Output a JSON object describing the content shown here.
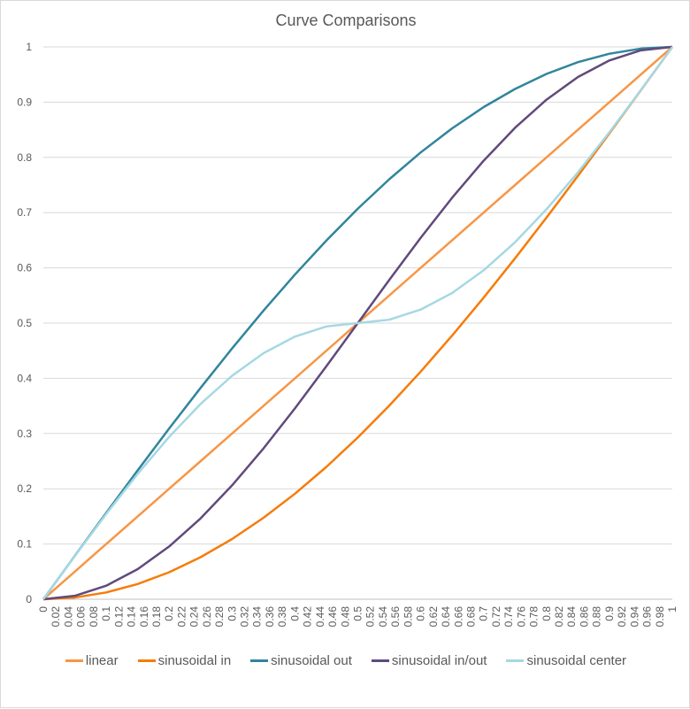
{
  "chart_data": {
    "type": "line",
    "title": "Curve Comparisons",
    "xlabel": "",
    "ylabel": "",
    "xlim": [
      0,
      1
    ],
    "ylim": [
      0,
      1
    ],
    "x_tick_step": 0.02,
    "y_tick_step": 0.1,
    "grid": "horizontal",
    "legend_position": "bottom",
    "x": [
      0,
      0.05,
      0.1,
      0.15,
      0.2,
      0.25,
      0.3,
      0.35,
      0.4,
      0.45,
      0.5,
      0.55,
      0.6,
      0.65,
      0.7,
      0.75,
      0.8,
      0.85,
      0.9,
      0.95,
      1
    ],
    "series": [
      {
        "name": "linear",
        "color": "#F79646",
        "values": [
          0,
          0.05,
          0.1,
          0.15,
          0.2,
          0.25,
          0.3,
          0.35,
          0.4,
          0.45,
          0.5,
          0.55,
          0.6,
          0.65,
          0.7,
          0.75,
          0.8,
          0.85,
          0.9,
          0.95,
          1
        ]
      },
      {
        "name": "sinusoidal in",
        "color": "#F57C0A",
        "values": [
          0,
          0.0031,
          0.0123,
          0.0276,
          0.0489,
          0.0761,
          0.109,
          0.1474,
          0.191,
          0.2396,
          0.2929,
          0.3506,
          0.4122,
          0.4775,
          0.546,
          0.6173,
          0.691,
          0.7666,
          0.8436,
          0.9215,
          1
        ]
      },
      {
        "name": "sinusoidal out",
        "color": "#31859C",
        "values": [
          0,
          0.0785,
          0.1564,
          0.2334,
          0.309,
          0.3827,
          0.454,
          0.5225,
          0.5878,
          0.6494,
          0.7071,
          0.7604,
          0.809,
          0.8526,
          0.891,
          0.9239,
          0.9511,
          0.9724,
          0.9877,
          0.9969,
          1
        ]
      },
      {
        "name": "sinusoidal in/out",
        "color": "#604A7B",
        "values": [
          0,
          0.0062,
          0.0245,
          0.0545,
          0.0955,
          0.1464,
          0.2061,
          0.273,
          0.3455,
          0.4218,
          0.5,
          0.5782,
          0.6545,
          0.727,
          0.7939,
          0.8536,
          0.9045,
          0.9455,
          0.9755,
          0.9938,
          1
        ]
      },
      {
        "name": "sinusoidal center",
        "color": "#A5D8E3",
        "values": [
          0,
          0.0782,
          0.1545,
          0.227,
          0.2939,
          0.3536,
          0.4045,
          0.4455,
          0.4755,
          0.4939,
          0.5,
          0.5061,
          0.5245,
          0.5545,
          0.5955,
          0.6464,
          0.7061,
          0.773,
          0.8455,
          0.9218,
          1
        ]
      }
    ]
  }
}
